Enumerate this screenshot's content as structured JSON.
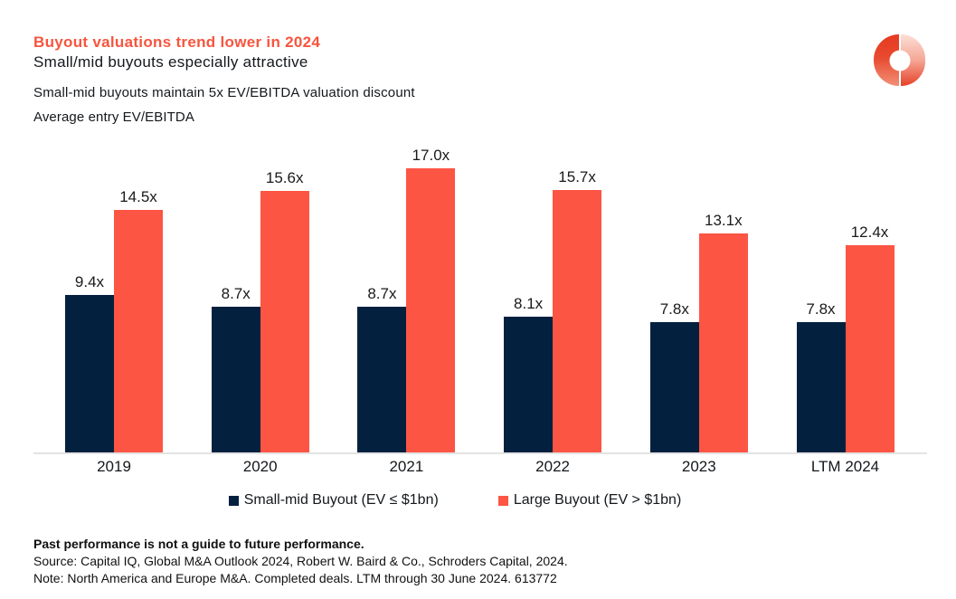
{
  "header": {
    "title": "Buyout valuations trend lower in 2024",
    "subtitle": "Small/mid buyouts especially attractive",
    "description": "Small-mid buyouts maintain 5x EV/EBITDA valuation discount"
  },
  "colors": {
    "accent_coral": "#FD5544",
    "dark_navy": "#04203F",
    "axis_line": "#E3E3E3",
    "text": "#14181C",
    "title_text": "#F7553E"
  },
  "logo": {
    "icon": "schroders-capital-ring-logo"
  },
  "chart_data": {
    "type": "bar",
    "categories": [
      "2019",
      "2020",
      "2021",
      "2022",
      "2023",
      "LTM 2024"
    ],
    "series": [
      {
        "name": "Small-mid Buyout (EV ≤ $1bn)",
        "color": "#04203F",
        "values": [
          9.4,
          8.7,
          8.7,
          8.1,
          7.8,
          7.8
        ]
      },
      {
        "name": "Large Buyout (EV > $1bn)",
        "color": "#FD5544",
        "values": [
          14.5,
          15.6,
          17.0,
          15.7,
          13.1,
          12.4
        ]
      }
    ],
    "title": "Small-mid buyouts maintain 5x EV/EBITDA valuation discount",
    "xlabel": "",
    "ylabel": "Average entry EV/EBITDA",
    "ylim": [
      0,
      18.9
    ],
    "grid": false,
    "legend_position": "bottom",
    "value_suffix": "x"
  },
  "footer": {
    "disclaimer": "Past performance is not a guide to future performance.",
    "source": "Source: Capital IQ, Global M&A Outlook 2024, Robert W. Baird & Co., Schroders Capital, 2024.",
    "note": "Note: North America and Europe M&A. Completed deals. LTM through 30 June 2024. 613772"
  }
}
